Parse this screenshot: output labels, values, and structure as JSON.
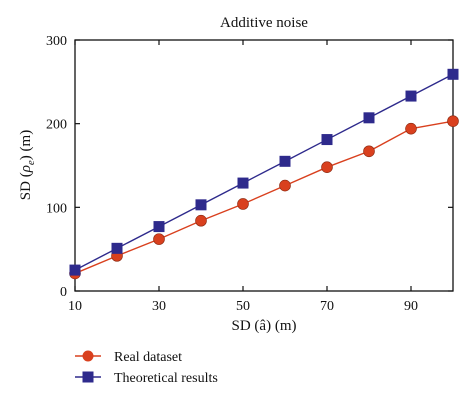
{
  "chart_data": {
    "type": "line",
    "title": "Additive noise",
    "xlabel": "SD (â) (m)",
    "ylabel_main": "SD (",
    "ylabel_rho": "ρ",
    "ylabel_sub": "e",
    "ylabel_end": ") (m)",
    "xlim": [
      10,
      100
    ],
    "ylim": [
      0,
      300
    ],
    "xticks": [
      10,
      30,
      50,
      70,
      90
    ],
    "yticks": [
      0,
      100,
      200,
      300
    ],
    "grid": false,
    "legend_position": "bottom-left, below plot",
    "x": [
      10,
      20,
      30,
      40,
      50,
      60,
      70,
      80,
      90,
      100
    ],
    "series": [
      {
        "name": "Real dataset",
        "marker": "circle",
        "marker_color": "#d9401e",
        "line_color": "#d9401e",
        "values": [
          21,
          42,
          62,
          84,
          104,
          126,
          148,
          167,
          194,
          203
        ]
      },
      {
        "name": "Theoretical results",
        "marker": "square",
        "marker_color": "#2e2a8c",
        "line_color": "#2e2a8c",
        "values": [
          25,
          51,
          77,
          103,
          129,
          155,
          181,
          207,
          233,
          259
        ]
      }
    ]
  }
}
